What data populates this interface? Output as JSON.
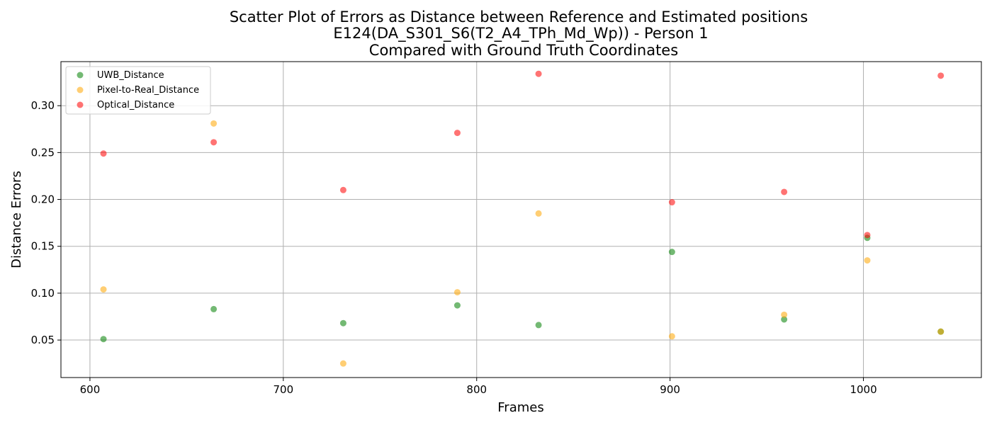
{
  "chart_data": {
    "type": "scatter",
    "title": [
      "Scatter Plot of Errors as Distance between Reference and Estimated positions",
      "E124(DA_S301_S6(T2_A4_TPh_Md_Wp)) - Person 1",
      "Compared with Ground Truth Coordinates"
    ],
    "xlabel": "Frames",
    "ylabel": "Distance Errors",
    "xlim": [
      585,
      1061
    ],
    "ylim": [
      0.01,
      0.347
    ],
    "xticks": [
      600,
      700,
      800,
      900,
      1000
    ],
    "yticks": [
      0.05,
      0.1,
      0.15,
      0.2,
      0.25,
      0.3
    ],
    "ytick_labels": [
      "0.05",
      "0.10",
      "0.15",
      "0.20",
      "0.25",
      "0.30"
    ],
    "grid": true,
    "legend_position": "upper-left",
    "series": [
      {
        "name": "UWB_Distance",
        "color": "#008000",
        "x": [
          607,
          664,
          731,
          790,
          832,
          901,
          959,
          1002,
          1040
        ],
        "y": [
          0.051,
          0.083,
          0.068,
          0.087,
          0.066,
          0.144,
          0.072,
          0.159,
          0.059
        ]
      },
      {
        "name": "Pixel-to-Real_Distance",
        "color": "#FFA500",
        "x": [
          607,
          664,
          731,
          790,
          832,
          901,
          959,
          1002,
          1040
        ],
        "y": [
          0.104,
          0.281,
          0.025,
          0.101,
          0.185,
          0.054,
          0.077,
          0.135,
          0.059
        ]
      },
      {
        "name": "Optical_Distance",
        "color": "#FF0000",
        "x": [
          607,
          664,
          731,
          790,
          832,
          901,
          959,
          1002,
          1040
        ],
        "y": [
          0.249,
          0.261,
          0.21,
          0.271,
          0.334,
          0.197,
          0.208,
          0.162,
          0.332
        ]
      }
    ]
  }
}
